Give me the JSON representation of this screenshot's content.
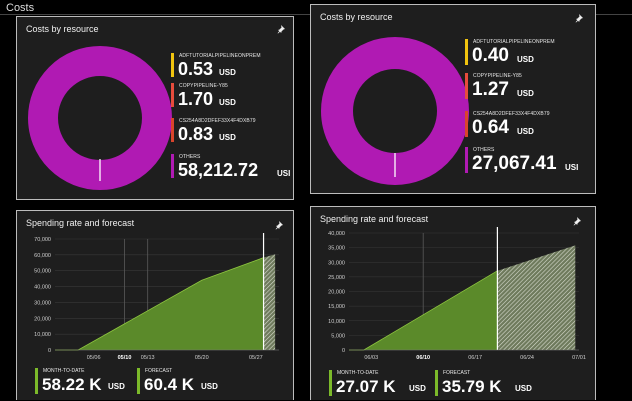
{
  "page": {
    "title": "Costs"
  },
  "icons": {
    "pin": "pin-icon"
  },
  "colors": {
    "donut": "#b01ab3",
    "resource1": "#f1c40f",
    "resource2": "#e74c3c",
    "resource3": "#d9442c",
    "others": "#b01ab3",
    "spend": "#5b8a2a",
    "forecast_bar": "#7cba2a"
  },
  "left": {
    "costs": {
      "title": "Costs by resource",
      "items": [
        {
          "name": "ADFTUTORIALPIPELINEONPREM",
          "value": "0.53",
          "unit": "USD"
        },
        {
          "name": "COPYPIPELINE-Y85",
          "value": "1.70",
          "unit": "USD"
        },
        {
          "name": "CS254A8D2DFEF33X4F4DXB79",
          "value": "0.83",
          "unit": "USD"
        },
        {
          "name": "OTHERS",
          "value": "58,212.72",
          "unit": "USI"
        }
      ]
    },
    "spending": {
      "title": "Spending rate and forecast",
      "month_to_date": {
        "label": "MONTH-TO-DATE",
        "value": "58.22 K",
        "unit": "USD"
      },
      "forecast": {
        "label": "FORECAST",
        "value": "60.4 K",
        "unit": "USD"
      }
    }
  },
  "right": {
    "costs": {
      "title": "Costs by resource",
      "items": [
        {
          "name": "ADFTUTORIALPIPELINEONPREM",
          "value": "0.40",
          "unit": "USD"
        },
        {
          "name": "COPYPIPELINE-Y85",
          "value": "1.27",
          "unit": "USD"
        },
        {
          "name": "CS254A8D2DFEF33X4F4DXB79",
          "value": "0.64",
          "unit": "USD"
        },
        {
          "name": "OTHERS",
          "value": "27,067.41",
          "unit": "USI"
        }
      ]
    },
    "spending": {
      "title": "Spending rate and forecast",
      "month_to_date": {
        "label": "MONTH-TO-DATE",
        "value": "27.07 K",
        "unit": "USD"
      },
      "forecast": {
        "label": "FORECAST",
        "value": "35.79 K",
        "unit": "USD"
      }
    }
  },
  "chart_data": [
    {
      "type": "area",
      "title": "Spending rate and forecast",
      "y_ticks": [
        "70,000",
        "60,000",
        "50,000",
        "40,000",
        "30,000",
        "20,000",
        "10,000",
        "0"
      ],
      "ylim": [
        0,
        70000
      ],
      "x_ticks": [
        "05/06",
        "05/10",
        "05/13",
        "05/20",
        "05/27"
      ],
      "xlim": [
        0,
        29
      ],
      "tick_days": [
        5,
        9,
        12,
        19,
        26
      ],
      "highlight_days": [
        9,
        12
      ],
      "today_day": 27,
      "series": [
        {
          "name": "Spend",
          "x": [
            0,
            3,
            19,
            27
          ],
          "y": [
            0,
            0,
            44000,
            58220
          ]
        },
        {
          "name": "Forecast",
          "x": [
            27,
            28.5
          ],
          "y": [
            58220,
            60400
          ]
        }
      ]
    },
    {
      "type": "area",
      "title": "Spending rate and forecast",
      "y_ticks": [
        "40,000",
        "35,000",
        "30,000",
        "25,000",
        "20,000",
        "15,000",
        "10,000",
        "5,000",
        "0"
      ],
      "ylim": [
        0,
        40000
      ],
      "x_ticks": [
        "06/03",
        "06/10",
        "06/17",
        "06/24",
        "07/01"
      ],
      "xlim": [
        0,
        31
      ],
      "tick_days": [
        3,
        10,
        17,
        24,
        31
      ],
      "highlight_days": [
        10
      ],
      "today_day": 20,
      "series": [
        {
          "name": "Spend",
          "x": [
            0,
            2,
            20
          ],
          "y": [
            0,
            0,
            27070
          ]
        },
        {
          "name": "Forecast",
          "x": [
            20,
            30.5
          ],
          "y": [
            27070,
            35790
          ]
        }
      ]
    }
  ]
}
